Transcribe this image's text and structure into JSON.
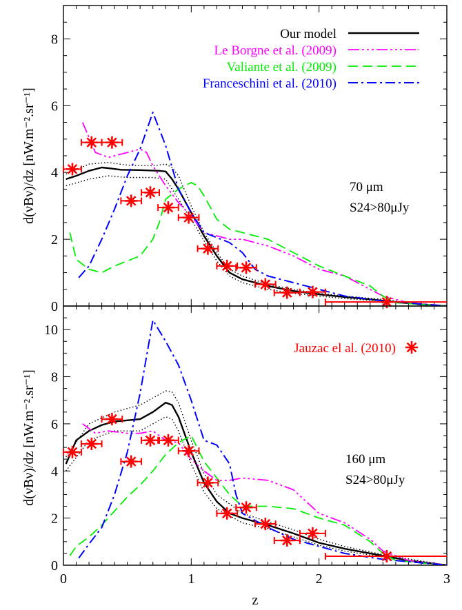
{
  "colors": {
    "model": "#000000",
    "leborgne": "#ff00ff",
    "valiante": "#00ee00",
    "franceschini": "#0000ff",
    "jauzac": "#ff0000"
  },
  "chart_data": [
    {
      "type": "line",
      "panel": "top",
      "xlabel": "z",
      "ylabel": "d(νBν)/dz [nW.m⁻².sr⁻¹]",
      "xlim": [
        0,
        3
      ],
      "ylim": [
        0,
        9
      ],
      "xticks": [
        "0",
        "1",
        "2",
        "3"
      ],
      "yticks": [
        "0",
        "2",
        "4",
        "6",
        "8"
      ],
      "annotation": [
        "70 μm",
        "S24>80μJy"
      ],
      "legend": {
        "placement": "top-right",
        "entries": [
          "Our model",
          "Le Borgne et al. (2009)",
          "Valiante et al. (2009)",
          "Franceschini et al. (2010)"
        ]
      },
      "series": [
        {
          "name": "Our model",
          "style": "solid",
          "x": [
            0.02,
            0.1,
            0.2,
            0.3,
            0.35,
            0.45,
            0.6,
            0.75,
            0.8,
            0.85,
            0.9,
            1.0,
            1.1,
            1.2,
            1.3,
            1.4,
            1.6,
            1.8,
            2.0,
            2.2,
            2.4,
            2.6,
            2.8,
            3.0
          ],
          "y": [
            3.8,
            3.9,
            4.05,
            4.15,
            4.13,
            4.08,
            4.07,
            4.05,
            4.03,
            3.8,
            3.5,
            2.8,
            2.1,
            1.5,
            1.0,
            0.8,
            0.6,
            0.45,
            0.35,
            0.27,
            0.2,
            0.12,
            0.05,
            0.0
          ]
        },
        {
          "name": "",
          "style": "dotted",
          "x": [
            0.02,
            0.2,
            0.35,
            0.5,
            0.7,
            0.8,
            0.85,
            0.9,
            1.0,
            1.1,
            1.2,
            1.3,
            1.4,
            1.6,
            1.8,
            2.0,
            2.2,
            2.5,
            2.8,
            3.0
          ],
          "y": [
            3.95,
            4.25,
            4.3,
            4.22,
            4.2,
            4.25,
            4.15,
            3.9,
            3.0,
            2.2,
            1.6,
            1.1,
            0.9,
            0.65,
            0.5,
            0.38,
            0.3,
            0.2,
            0.05,
            0.0
          ]
        },
        {
          "name": "",
          "style": "dotted",
          "x": [
            0.02,
            0.2,
            0.35,
            0.5,
            0.7,
            0.8,
            0.85,
            0.9,
            1.0,
            1.1,
            1.2,
            1.3,
            1.4,
            1.6,
            1.8,
            2.0,
            2.2,
            2.5,
            2.8,
            3.0
          ],
          "y": [
            3.6,
            3.8,
            3.9,
            3.85,
            3.85,
            3.8,
            3.5,
            3.2,
            2.6,
            1.95,
            1.35,
            0.9,
            0.7,
            0.5,
            0.38,
            0.3,
            0.22,
            0.15,
            0.04,
            0.0
          ]
        },
        {
          "name": "Le Borgne et al. (2009)",
          "style": "dash-dot-dot",
          "x": [
            0.15,
            0.25,
            0.35,
            0.5,
            0.6,
            0.65,
            0.7,
            0.8,
            0.9,
            1.0,
            1.1,
            1.3,
            1.4,
            1.6,
            1.8,
            2.0,
            2.2,
            2.4,
            2.5,
            2.7,
            3.0
          ],
          "y": [
            5.5,
            4.6,
            4.45,
            4.6,
            4.7,
            4.6,
            4.2,
            3.6,
            3.1,
            2.7,
            2.2,
            2.0,
            2.0,
            1.8,
            1.5,
            1.1,
            0.9,
            0.5,
            0.3,
            0.1,
            0.0
          ]
        },
        {
          "name": "Valiante et al. (2009)",
          "style": "dashed",
          "x": [
            0.05,
            0.1,
            0.2,
            0.3,
            0.4,
            0.5,
            0.6,
            0.7,
            0.75,
            0.8,
            0.9,
            1.0,
            1.05,
            1.1,
            1.2,
            1.3,
            1.4,
            1.6,
            1.8,
            2.0,
            2.2,
            2.4,
            2.5,
            2.6,
            3.0
          ],
          "y": [
            2.2,
            1.4,
            1.1,
            1.0,
            1.2,
            1.35,
            1.5,
            2.0,
            2.5,
            3.2,
            3.5,
            3.7,
            3.6,
            3.3,
            2.6,
            2.3,
            2.2,
            2.0,
            1.6,
            1.2,
            0.9,
            0.6,
            0.3,
            0.1,
            0.0
          ]
        },
        {
          "name": "Franceschini et al. (2010)",
          "style": "dash-dot",
          "x": [
            0.12,
            0.2,
            0.3,
            0.4,
            0.5,
            0.6,
            0.7,
            0.8,
            0.9,
            1.0,
            1.1,
            1.2,
            1.3,
            1.4,
            1.5,
            1.6,
            1.8,
            2.0,
            2.2,
            2.5,
            3.0
          ],
          "y": [
            0.85,
            1.2,
            2.0,
            2.9,
            3.9,
            4.7,
            5.8,
            4.8,
            3.5,
            2.8,
            2.2,
            2.05,
            1.9,
            1.6,
            1.1,
            0.9,
            0.7,
            0.5,
            0.3,
            0.15,
            0.0
          ]
        },
        {
          "name": "Jauzac el al. (2010)",
          "type": "scatter",
          "x": [
            0.07,
            0.22,
            0.38,
            0.53,
            0.68,
            0.82,
            0.98,
            1.13,
            1.28,
            1.43,
            1.58,
            1.75,
            1.95,
            2.53
          ],
          "y": [
            4.1,
            4.9,
            4.9,
            3.15,
            3.4,
            2.95,
            2.65,
            1.72,
            1.2,
            1.15,
            0.65,
            0.4,
            0.42,
            0.12
          ],
          "xerr": [
            0.07,
            0.08,
            0.08,
            0.08,
            0.07,
            0.08,
            0.08,
            0.08,
            0.08,
            0.08,
            0.08,
            0.1,
            0.1,
            0.48
          ]
        }
      ]
    },
    {
      "type": "line",
      "panel": "bottom",
      "xlabel": "z",
      "ylabel": "d(νBν)/dz [nW.m⁻².sr⁻¹]",
      "xlim": [
        0,
        3
      ],
      "ylim": [
        0,
        11
      ],
      "xticks": [
        "0",
        "1",
        "2",
        "3"
      ],
      "yticks": [
        "0",
        "2",
        "4",
        "6",
        "8",
        "10"
      ],
      "annotation": [
        "160 μm",
        "S24>80μJy"
      ],
      "legend": {
        "placement": "top-right",
        "entries": [
          "Jauzac el al. (2010)"
        ]
      },
      "series": [
        {
          "name": "Our model",
          "style": "solid",
          "x": [
            0.02,
            0.1,
            0.2,
            0.3,
            0.4,
            0.5,
            0.6,
            0.7,
            0.8,
            0.85,
            0.9,
            1.0,
            1.1,
            1.2,
            1.3,
            1.4,
            1.6,
            1.8,
            2.0,
            2.2,
            2.5,
            2.7,
            3.0
          ],
          "y": [
            4.3,
            5.3,
            5.7,
            5.95,
            6.1,
            6.15,
            6.2,
            6.5,
            6.9,
            6.8,
            6.3,
            4.8,
            3.5,
            2.7,
            2.2,
            2.0,
            1.7,
            1.35,
            0.95,
            0.7,
            0.4,
            0.2,
            0.0
          ]
        },
        {
          "name": "",
          "style": "dotted",
          "x": [
            0.02,
            0.2,
            0.4,
            0.6,
            0.8,
            0.85,
            0.9,
            1.0,
            1.1,
            1.2,
            1.4,
            1.6,
            1.8,
            2.0,
            2.2,
            2.5,
            3.0
          ],
          "y": [
            4.6,
            6.0,
            6.5,
            6.8,
            7.4,
            7.35,
            6.9,
            5.3,
            3.9,
            3.0,
            2.2,
            1.85,
            1.5,
            1.1,
            0.8,
            0.45,
            0.0
          ]
        },
        {
          "name": "",
          "style": "dotted",
          "x": [
            0.02,
            0.2,
            0.4,
            0.6,
            0.8,
            0.85,
            0.9,
            1.0,
            1.1,
            1.2,
            1.4,
            1.6,
            1.8,
            2.0,
            2.2,
            2.5,
            3.0
          ],
          "y": [
            4.0,
            5.3,
            5.7,
            5.7,
            6.3,
            6.2,
            5.7,
            4.3,
            3.1,
            2.4,
            1.8,
            1.55,
            1.2,
            0.85,
            0.6,
            0.35,
            0.0
          ]
        },
        {
          "name": "Le Borgne et al. (2009)",
          "style": "dash-dot-dot",
          "x": [
            0.15,
            0.25,
            0.35,
            0.5,
            0.6,
            0.7,
            0.8,
            0.9,
            1.0,
            1.1,
            1.2,
            1.3,
            1.4,
            1.6,
            1.8,
            2.0,
            2.2,
            2.4,
            2.5,
            2.7,
            3.0
          ],
          "y": [
            6.0,
            5.6,
            5.7,
            5.6,
            5.6,
            5.7,
            5.3,
            5.2,
            4.5,
            4.0,
            3.6,
            3.6,
            3.7,
            3.6,
            3.2,
            2.2,
            1.8,
            1.1,
            0.6,
            0.2,
            0.0
          ]
        },
        {
          "name": "Valiante et al. (2009)",
          "style": "dashed",
          "x": [
            0.05,
            0.1,
            0.2,
            0.3,
            0.4,
            0.5,
            0.6,
            0.7,
            0.8,
            0.9,
            1.0,
            1.1,
            1.2,
            1.3,
            1.4,
            1.6,
            1.8,
            2.0,
            2.2,
            2.4,
            2.5,
            2.6,
            3.0
          ],
          "y": [
            0.4,
            0.8,
            1.2,
            1.7,
            2.3,
            2.9,
            3.4,
            4.0,
            4.7,
            5.2,
            5.5,
            4.4,
            3.7,
            3.0,
            2.5,
            2.5,
            2.4,
            2.0,
            1.7,
            1.0,
            0.5,
            0.2,
            0.0
          ]
        },
        {
          "name": "Franceschini et al. (2010)",
          "style": "dash-dot",
          "x": [
            0.12,
            0.2,
            0.3,
            0.4,
            0.5,
            0.6,
            0.7,
            0.8,
            0.9,
            1.0,
            1.1,
            1.2,
            1.3,
            1.35,
            1.4,
            1.5,
            1.6,
            1.8,
            2.0,
            2.2,
            2.5,
            3.0
          ],
          "y": [
            0.3,
            0.9,
            1.6,
            3.0,
            4.8,
            7.3,
            10.4,
            9.5,
            8.5,
            7.0,
            5.3,
            5.1,
            4.3,
            3.0,
            2.2,
            1.9,
            1.6,
            1.1,
            0.8,
            0.5,
            0.25,
            0.0
          ]
        },
        {
          "name": "Jauzac el al. (2010)",
          "type": "scatter",
          "x": [
            0.07,
            0.22,
            0.38,
            0.53,
            0.68,
            0.82,
            0.98,
            1.13,
            1.28,
            1.43,
            1.58,
            1.75,
            1.95,
            2.53
          ],
          "y": [
            4.8,
            5.15,
            6.2,
            4.4,
            5.3,
            5.3,
            4.85,
            3.5,
            2.2,
            2.45,
            1.75,
            1.05,
            1.35,
            0.38
          ],
          "xerr": [
            0.07,
            0.08,
            0.08,
            0.08,
            0.07,
            0.08,
            0.08,
            0.08,
            0.08,
            0.08,
            0.08,
            0.1,
            0.1,
            0.48
          ]
        }
      ]
    }
  ]
}
